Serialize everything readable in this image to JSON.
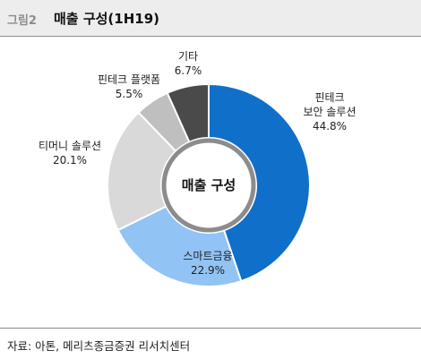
{
  "header": {
    "fig_num": "그림2",
    "title": "매출 구성(1H19)"
  },
  "footer": {
    "source": "자료: 아톤, 메리츠종금증권 리서치센터"
  },
  "chart_data": {
    "type": "pie",
    "title": "매출 구성(1H19)",
    "center_label": "매출 구성",
    "categories": [
      "핀테크 보안 솔루션",
      "스마트금융",
      "티머니 솔루션",
      "핀테크 플랫폼",
      "기타"
    ],
    "values": [
      44.8,
      22.9,
      20.1,
      5.5,
      6.7
    ],
    "value_labels": [
      "44.8%",
      "22.9%",
      "20.1%",
      "5.5%",
      "6.7%"
    ],
    "label_lines": [
      [
        "핀테크",
        "보안 솔루션",
        "44.8%"
      ],
      [
        "스마트금융",
        "22.9%"
      ],
      [
        "티머니 솔루션",
        "20.1%"
      ],
      [
        "핀테크 플랫폼",
        "5.5%"
      ],
      [
        "기타",
        "6.7%"
      ]
    ],
    "colors": [
      "#0f6fc9",
      "#92c3f5",
      "#d9d9d9",
      "#bfbfbf",
      "#4a4a4a"
    ],
    "legend": "none"
  }
}
